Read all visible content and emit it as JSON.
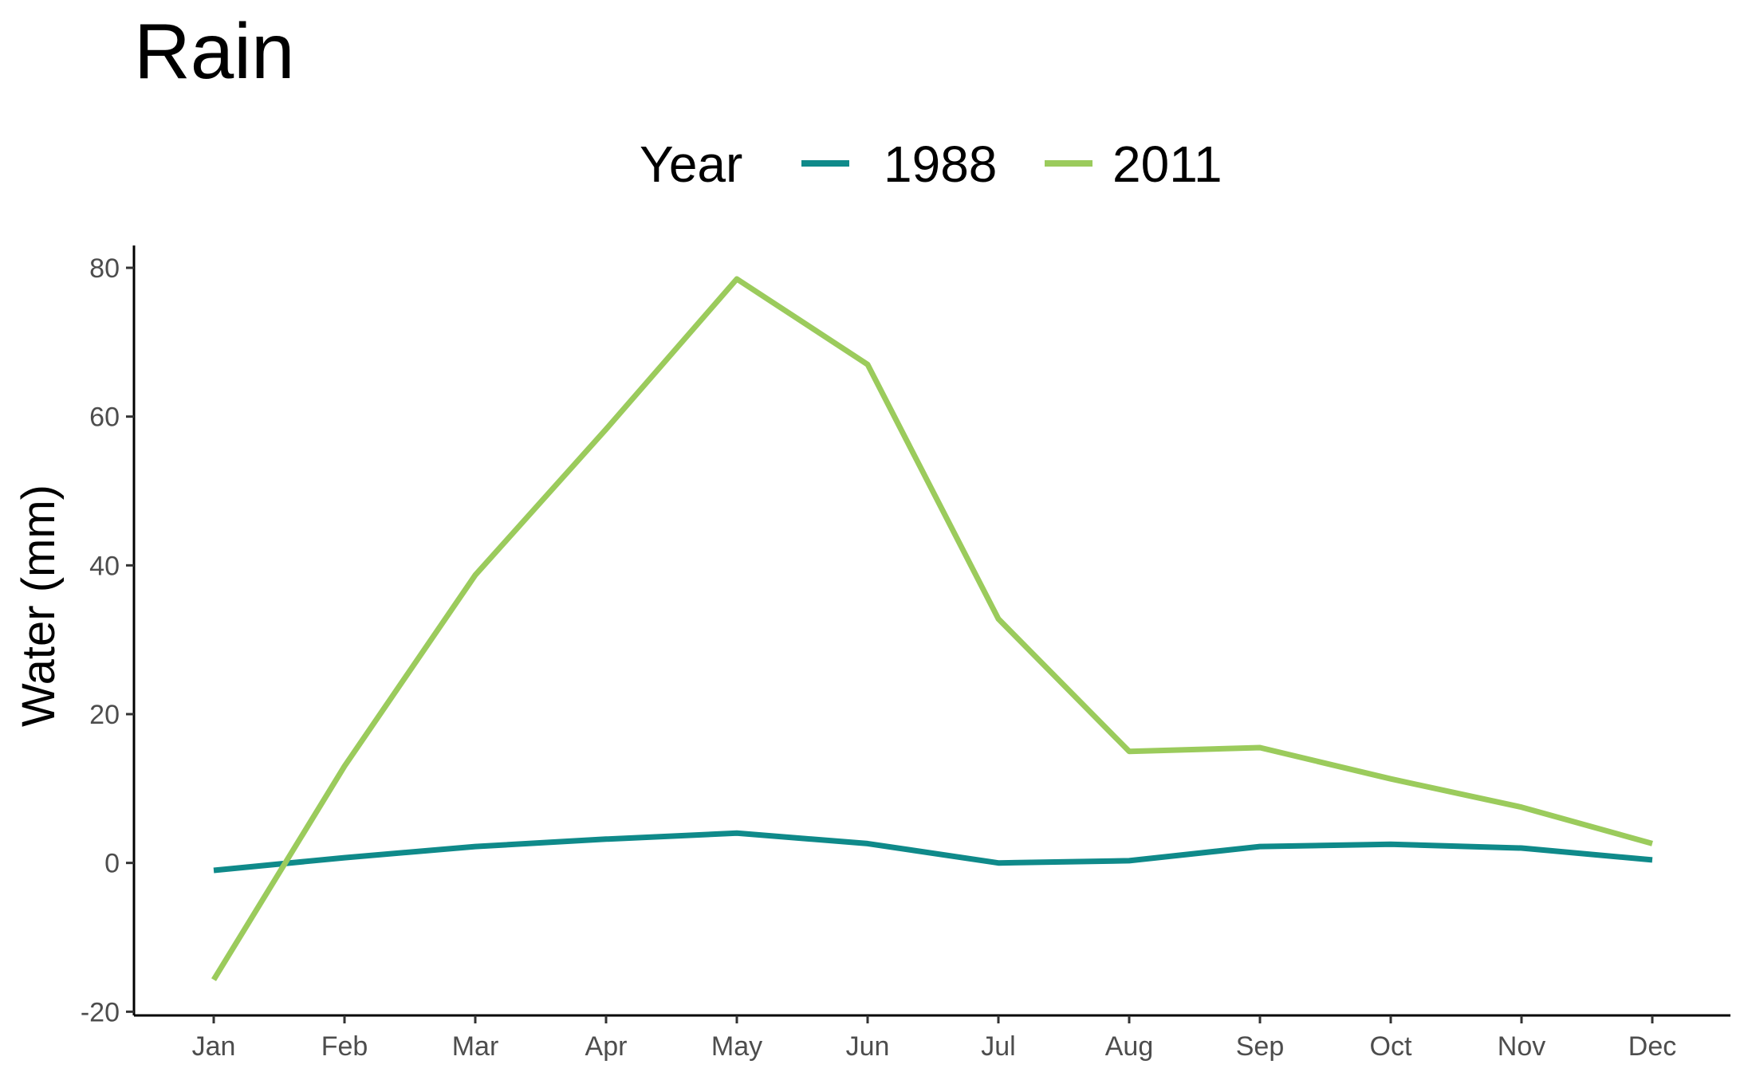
{
  "chart_data": {
    "type": "line",
    "title": "Rain",
    "xlabel": "",
    "ylabel": "Water (mm)",
    "categories": [
      "Jan",
      "Feb",
      "Mar",
      "Apr",
      "May",
      "Jun",
      "Jul",
      "Aug",
      "Sep",
      "Oct",
      "Nov",
      "Dec"
    ],
    "yticks": [
      -20,
      0,
      20,
      40,
      60,
      80
    ],
    "ylim": [
      -20.5,
      83
    ],
    "grid": false,
    "legend": {
      "title": "Year",
      "position": "top"
    },
    "series": [
      {
        "name": "1988",
        "color": "#0f8a8a",
        "values": [
          -1.0,
          0.7,
          2.2,
          3.2,
          4.0,
          2.6,
          0.0,
          0.3,
          2.2,
          2.5,
          2.0,
          0.4
        ]
      },
      {
        "name": "2011",
        "color": "#9bcb5c",
        "values": [
          -15.7,
          13.0,
          38.7,
          58.3,
          78.5,
          67.0,
          32.8,
          15.0,
          15.5,
          11.3,
          7.5,
          2.6
        ]
      }
    ]
  }
}
